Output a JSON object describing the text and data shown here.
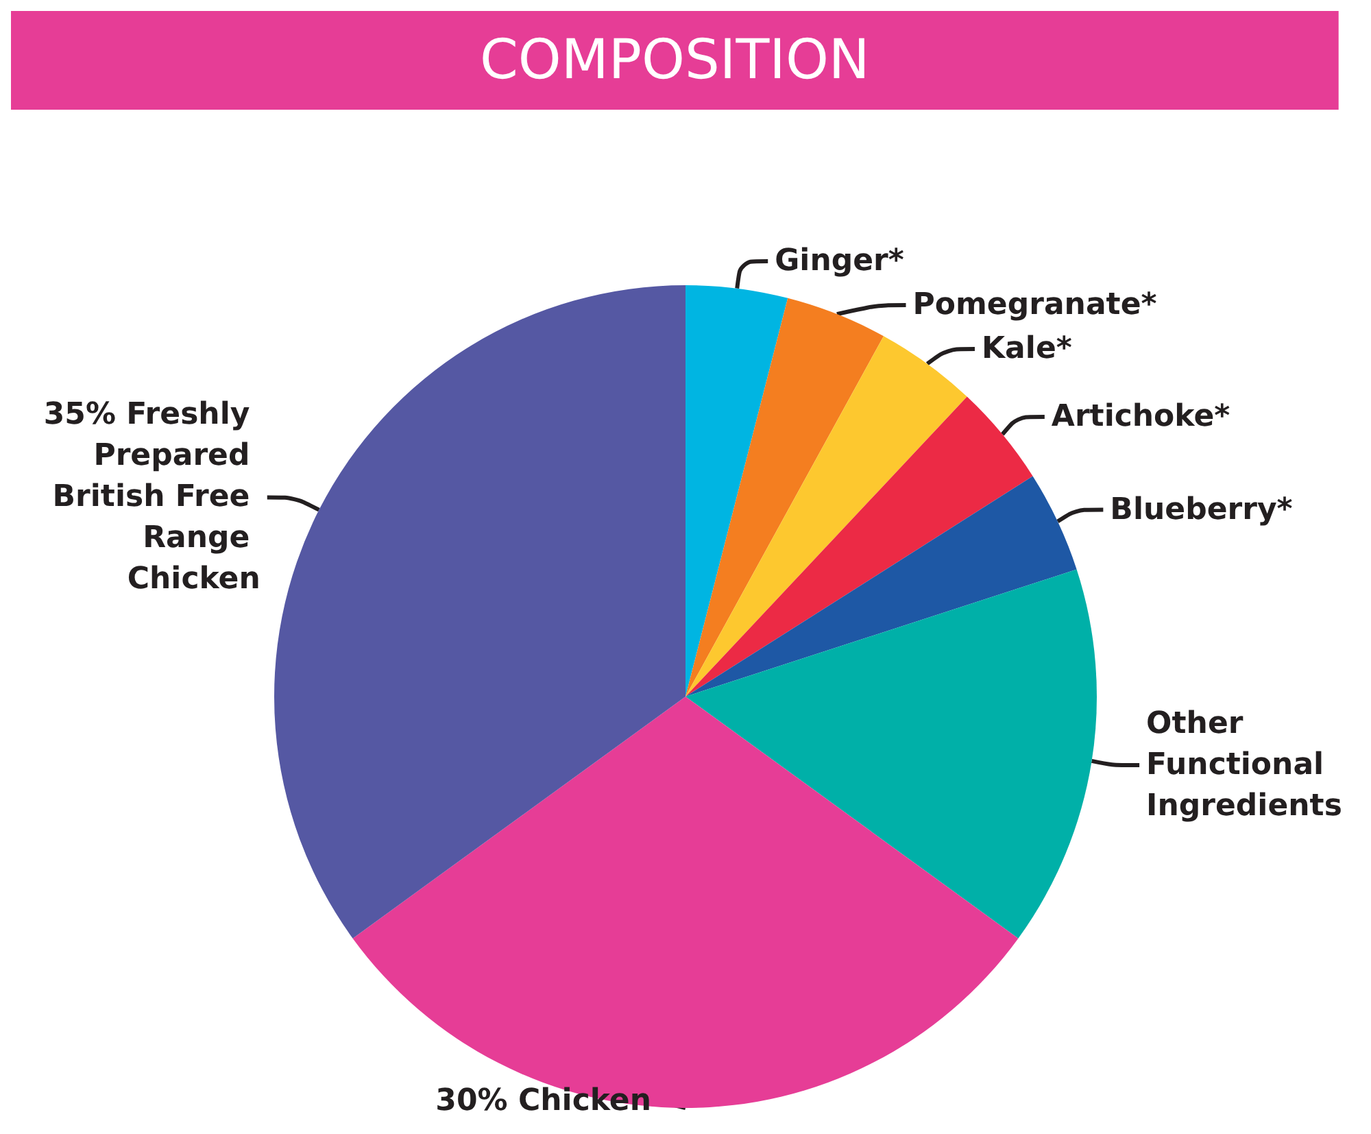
{
  "chart_data": {
    "type": "pie",
    "title": "COMPOSITION",
    "categories": [
      "Ginger*",
      "Pomegranate*",
      "Kale*",
      "Artichoke*",
      "Blueberry*",
      "Other Functional Ingredients",
      "30% Chicken",
      "35% Freshly Prepared British Free Range Chicken"
    ],
    "values": [
      4,
      4,
      4,
      4,
      4,
      15,
      30,
      35
    ],
    "colors": [
      "#00b5e2",
      "#f47e20",
      "#fdc82f",
      "#ec2a45",
      "#1e58a5",
      "#00b0a8",
      "#e63d96",
      "#5558a3"
    ],
    "legend": false
  }
}
